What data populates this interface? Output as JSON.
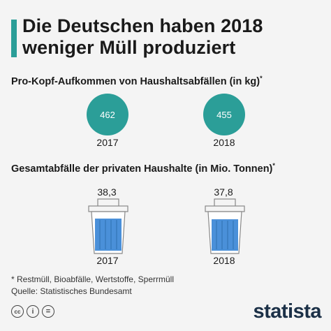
{
  "title": "Die Deutschen haben 2018 weniger Müll produziert",
  "section1": {
    "subtitle": "Pro-Kopf-Aufkommen von Haushaltsabfällen (in kg)",
    "marker": "*"
  },
  "section2": {
    "subtitle": "Gesamtabfälle der privaten Haushalte (in Mio. Tonnen)",
    "marker": "*"
  },
  "chart_data": [
    {
      "type": "bubble",
      "title": "Pro-Kopf-Aufkommen von Haushaltsabfällen (in kg)*",
      "categories": [
        "2017",
        "2018"
      ],
      "values": [
        462,
        455
      ],
      "value_labels": [
        "462",
        "455"
      ],
      "color": "#2b9e98"
    },
    {
      "type": "bar",
      "title": "Gesamtabfälle der privaten Haushalte (in Mio. Tonnen)*",
      "categories": [
        "2017",
        "2018"
      ],
      "values": [
        38.3,
        37.8
      ],
      "value_labels": [
        "38,3",
        "37,8"
      ],
      "color": "#4a90d9"
    }
  ],
  "footnotes": {
    "note": "* Restmüll, Bioabfälle, Wertstoffe, Sperrmüll",
    "source": "Quelle: Statistisches Bundesamt"
  },
  "license_icons": [
    "cc",
    "i",
    "="
  ],
  "brand": "statista"
}
